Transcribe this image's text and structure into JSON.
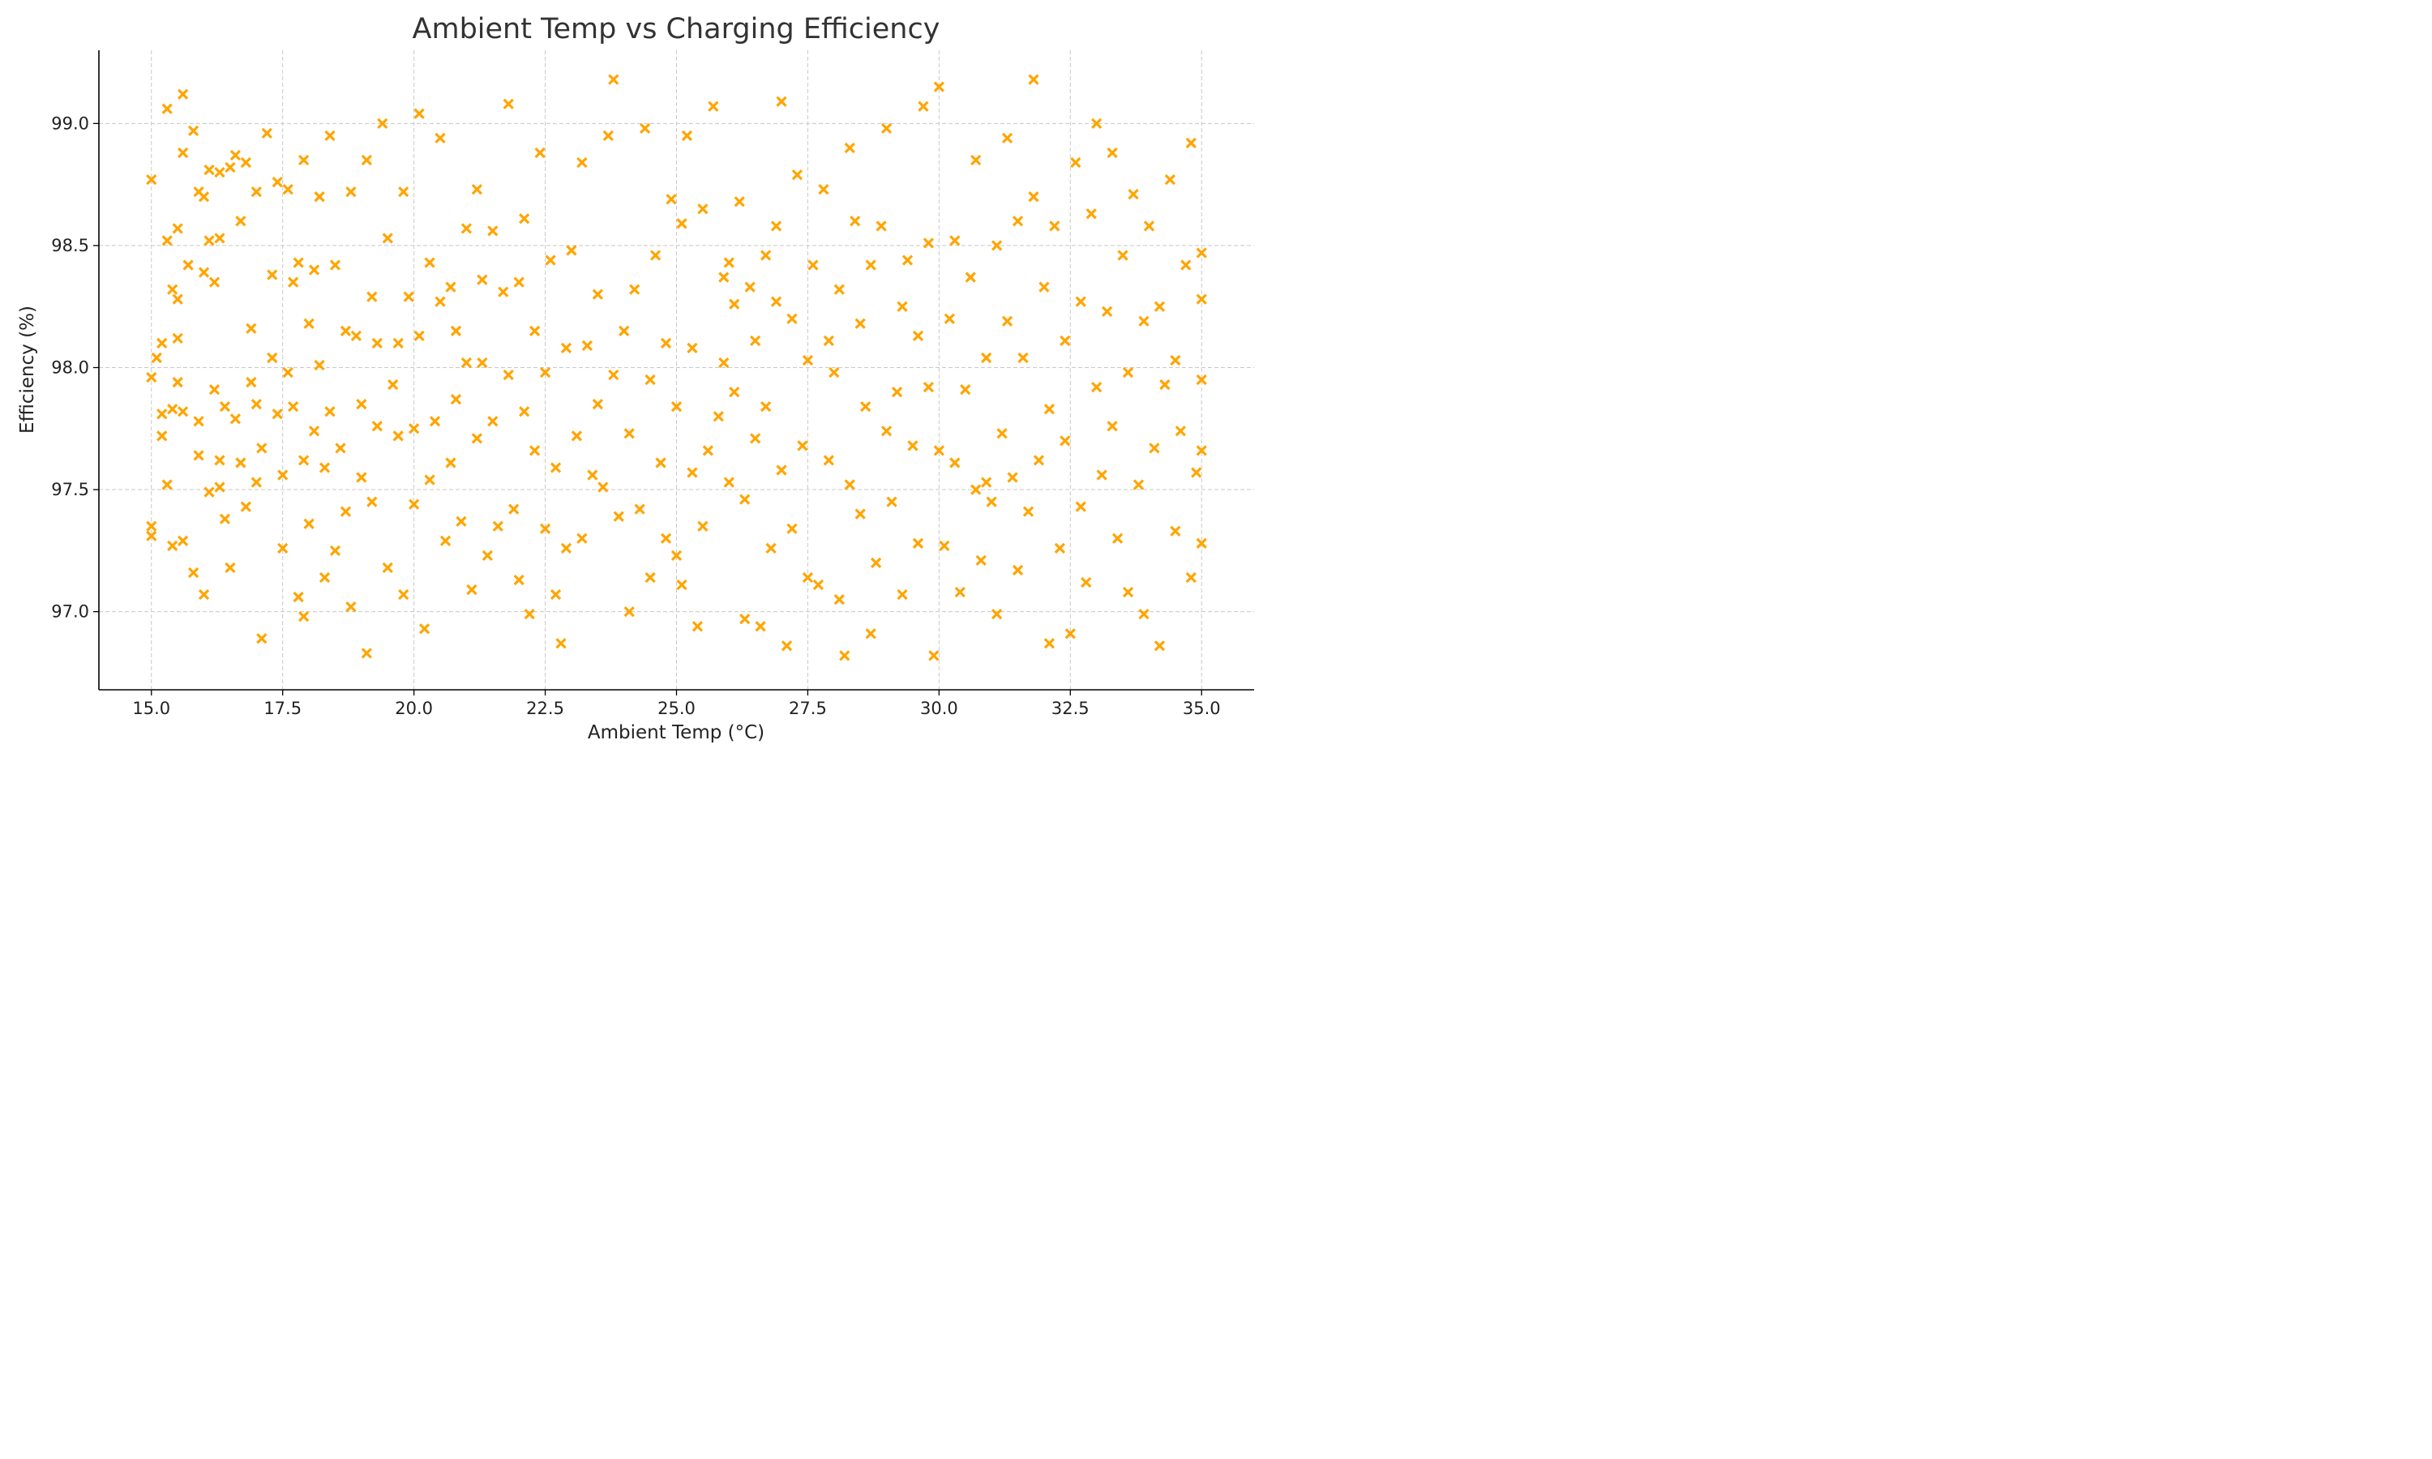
{
  "chart_data": {
    "type": "scatter",
    "title": "Ambient Temp vs Charging Efficiency",
    "xlabel": "Ambient Temp (°C)",
    "ylabel": "Efficiency (%)",
    "xlim": [
      14.0,
      36.0
    ],
    "ylim": [
      96.68,
      99.3
    ],
    "xticks": [
      15.0,
      17.5,
      20.0,
      22.5,
      25.0,
      27.5,
      30.0,
      32.5,
      35.0
    ],
    "xtick_labels": [
      "15.0",
      "17.5",
      "20.0",
      "22.5",
      "25.0",
      "27.5",
      "30.0",
      "32.5",
      "35.0"
    ],
    "yticks": [
      97.0,
      97.5,
      98.0,
      98.5,
      99.0
    ],
    "ytick_labels": [
      "97.0",
      "97.5",
      "98.0",
      "98.5",
      "99.0"
    ],
    "grid": true,
    "marker": "x",
    "color": "#FFA500",
    "points": [
      [
        15.0,
        98.77
      ],
      [
        15.0,
        97.35
      ],
      [
        15.0,
        97.31
      ],
      [
        15.0,
        97.96
      ],
      [
        15.1,
        98.04
      ],
      [
        15.2,
        98.1
      ],
      [
        15.2,
        97.81
      ],
      [
        15.2,
        97.72
      ],
      [
        15.3,
        97.52
      ],
      [
        15.3,
        99.06
      ],
      [
        15.3,
        98.52
      ],
      [
        15.4,
        97.83
      ],
      [
        15.4,
        98.32
      ],
      [
        15.4,
        97.27
      ],
      [
        15.5,
        98.28
      ],
      [
        15.5,
        97.94
      ],
      [
        15.5,
        98.57
      ],
      [
        15.5,
        98.12
      ],
      [
        15.6,
        97.29
      ],
      [
        15.6,
        97.82
      ],
      [
        15.6,
        98.88
      ],
      [
        15.6,
        99.12
      ],
      [
        15.7,
        98.42
      ],
      [
        15.8,
        98.97
      ],
      [
        15.8,
        97.16
      ],
      [
        15.9,
        97.78
      ],
      [
        15.9,
        98.72
      ],
      [
        15.9,
        97.64
      ],
      [
        16.0,
        98.39
      ],
      [
        16.0,
        97.07
      ],
      [
        16.0,
        98.7
      ],
      [
        16.1,
        97.49
      ],
      [
        16.1,
        98.81
      ],
      [
        16.1,
        98.52
      ],
      [
        16.2,
        98.35
      ],
      [
        16.2,
        97.91
      ],
      [
        16.3,
        97.62
      ],
      [
        16.3,
        97.51
      ],
      [
        16.3,
        98.8
      ],
      [
        16.3,
        98.53
      ],
      [
        16.4,
        97.84
      ],
      [
        16.4,
        97.38
      ],
      [
        16.5,
        98.82
      ],
      [
        16.5,
        97.18
      ],
      [
        16.6,
        97.79
      ],
      [
        16.6,
        98.87
      ],
      [
        16.7,
        98.6
      ],
      [
        16.7,
        97.61
      ],
      [
        16.8,
        97.43
      ],
      [
        16.8,
        98.84
      ],
      [
        16.9,
        98.16
      ],
      [
        16.9,
        97.94
      ],
      [
        17.0,
        98.72
      ],
      [
        17.0,
        97.85
      ],
      [
        17.0,
        97.53
      ],
      [
        17.1,
        97.67
      ],
      [
        17.1,
        96.89
      ],
      [
        17.2,
        98.96
      ],
      [
        17.3,
        98.38
      ],
      [
        17.3,
        98.04
      ],
      [
        17.4,
        97.81
      ],
      [
        17.4,
        98.76
      ],
      [
        17.5,
        97.56
      ],
      [
        17.5,
        97.26
      ],
      [
        17.6,
        98.73
      ],
      [
        17.6,
        97.98
      ],
      [
        17.7,
        98.35
      ],
      [
        17.7,
        97.84
      ],
      [
        17.8,
        97.06
      ],
      [
        17.8,
        98.43
      ],
      [
        17.9,
        98.85
      ],
      [
        17.9,
        97.62
      ],
      [
        17.9,
        96.98
      ],
      [
        18.0,
        98.18
      ],
      [
        18.0,
        97.36
      ],
      [
        18.1,
        98.4
      ],
      [
        18.1,
        97.74
      ],
      [
        18.2,
        98.7
      ],
      [
        18.2,
        98.01
      ],
      [
        18.3,
        97.59
      ],
      [
        18.3,
        97.14
      ],
      [
        18.4,
        98.95
      ],
      [
        18.4,
        97.82
      ],
      [
        18.5,
        98.42
      ],
      [
        18.5,
        97.25
      ],
      [
        18.6,
        97.67
      ],
      [
        18.7,
        98.15
      ],
      [
        18.7,
        97.41
      ],
      [
        18.8,
        98.72
      ],
      [
        18.8,
        97.02
      ],
      [
        18.9,
        98.13
      ],
      [
        19.0,
        97.85
      ],
      [
        19.0,
        97.55
      ],
      [
        19.1,
        98.85
      ],
      [
        19.1,
        96.83
      ],
      [
        19.2,
        98.29
      ],
      [
        19.2,
        97.45
      ],
      [
        19.3,
        98.1
      ],
      [
        19.3,
        97.76
      ],
      [
        19.4,
        99.0
      ],
      [
        19.5,
        98.53
      ],
      [
        19.5,
        97.18
      ],
      [
        19.6,
        97.93
      ],
      [
        19.7,
        98.1
      ],
      [
        19.7,
        97.72
      ],
      [
        19.8,
        98.72
      ],
      [
        19.8,
        97.07
      ],
      [
        19.9,
        98.29
      ],
      [
        20.0,
        97.75
      ],
      [
        20.0,
        97.44
      ],
      [
        20.1,
        99.04
      ],
      [
        20.1,
        98.13
      ],
      [
        20.2,
        96.93
      ],
      [
        20.3,
        97.54
      ],
      [
        20.3,
        98.43
      ],
      [
        20.4,
        97.78
      ],
      [
        20.5,
        98.94
      ],
      [
        20.5,
        98.27
      ],
      [
        20.6,
        97.29
      ],
      [
        20.7,
        97.61
      ],
      [
        20.7,
        98.33
      ],
      [
        20.8,
        98.15
      ],
      [
        20.8,
        97.87
      ],
      [
        20.9,
        97.37
      ],
      [
        21.0,
        98.57
      ],
      [
        21.0,
        98.02
      ],
      [
        21.1,
        97.09
      ],
      [
        21.2,
        97.71
      ],
      [
        21.2,
        98.73
      ],
      [
        21.3,
        98.36
      ],
      [
        21.3,
        98.02
      ],
      [
        21.4,
        97.23
      ],
      [
        21.5,
        97.78
      ],
      [
        21.5,
        98.56
      ],
      [
        21.6,
        97.35
      ],
      [
        21.7,
        98.31
      ],
      [
        21.8,
        99.08
      ],
      [
        21.8,
        97.97
      ],
      [
        21.9,
        97.42
      ],
      [
        22.0,
        98.35
      ],
      [
        22.0,
        97.13
      ],
      [
        22.1,
        97.82
      ],
      [
        22.1,
        98.61
      ],
      [
        22.2,
        96.99
      ],
      [
        22.3,
        98.15
      ],
      [
        22.3,
        97.66
      ],
      [
        22.4,
        98.88
      ],
      [
        22.5,
        97.34
      ],
      [
        22.5,
        97.98
      ],
      [
        22.6,
        98.44
      ],
      [
        22.7,
        97.07
      ],
      [
        22.7,
        97.59
      ],
      [
        22.8,
        96.87
      ],
      [
        22.9,
        98.08
      ],
      [
        22.9,
        97.26
      ],
      [
        23.0,
        98.48
      ],
      [
        23.1,
        97.72
      ],
      [
        23.2,
        98.84
      ],
      [
        23.2,
        97.3
      ],
      [
        23.3,
        98.09
      ],
      [
        23.4,
        97.56
      ],
      [
        23.5,
        98.3
      ],
      [
        23.5,
        97.85
      ],
      [
        23.6,
        97.51
      ],
      [
        23.7,
        98.95
      ],
      [
        23.8,
        97.97
      ],
      [
        23.8,
        99.18
      ],
      [
        23.9,
        97.39
      ],
      [
        24.0,
        98.15
      ],
      [
        24.1,
        97.73
      ],
      [
        24.1,
        97.0
      ],
      [
        24.2,
        98.32
      ],
      [
        24.3,
        97.42
      ],
      [
        24.4,
        98.98
      ],
      [
        24.5,
        97.95
      ],
      [
        24.5,
        97.14
      ],
      [
        24.6,
        98.46
      ],
      [
        24.7,
        97.61
      ],
      [
        24.8,
        98.1
      ],
      [
        24.8,
        97.3
      ],
      [
        24.9,
        98.69
      ],
      [
        25.0,
        97.23
      ],
      [
        25.0,
        97.84
      ],
      [
        25.1,
        98.59
      ],
      [
        25.1,
        97.11
      ],
      [
        25.2,
        98.95
      ],
      [
        25.3,
        97.57
      ],
      [
        25.3,
        98.08
      ],
      [
        25.4,
        96.94
      ],
      [
        25.5,
        98.65
      ],
      [
        25.5,
        97.35
      ],
      [
        25.6,
        97.66
      ],
      [
        25.7,
        99.07
      ],
      [
        25.8,
        97.8
      ],
      [
        25.9,
        98.37
      ],
      [
        25.9,
        98.02
      ],
      [
        26.0,
        97.53
      ],
      [
        26.0,
        98.43
      ],
      [
        26.1,
        98.26
      ],
      [
        26.1,
        97.9
      ],
      [
        26.2,
        98.68
      ],
      [
        26.3,
        97.46
      ],
      [
        26.3,
        96.97
      ],
      [
        26.4,
        98.33
      ],
      [
        26.5,
        97.71
      ],
      [
        26.5,
        98.11
      ],
      [
        26.6,
        96.94
      ],
      [
        26.7,
        98.46
      ],
      [
        26.7,
        97.84
      ],
      [
        26.8,
        97.26
      ],
      [
        26.9,
        98.58
      ],
      [
        26.9,
        98.27
      ],
      [
        27.0,
        97.58
      ],
      [
        27.0,
        99.09
      ],
      [
        27.1,
        96.86
      ],
      [
        27.2,
        98.2
      ],
      [
        27.2,
        97.34
      ],
      [
        27.3,
        98.79
      ],
      [
        27.4,
        97.68
      ],
      [
        27.5,
        97.14
      ],
      [
        27.5,
        98.03
      ],
      [
        27.6,
        98.42
      ],
      [
        27.7,
        97.11
      ],
      [
        27.8,
        98.73
      ],
      [
        27.9,
        97.62
      ],
      [
        27.9,
        98.11
      ],
      [
        28.0,
        97.98
      ],
      [
        28.1,
        97.05
      ],
      [
        28.1,
        98.32
      ],
      [
        28.2,
        96.82
      ],
      [
        28.3,
        98.9
      ],
      [
        28.3,
        97.52
      ],
      [
        28.4,
        98.6
      ],
      [
        28.5,
        97.4
      ],
      [
        28.5,
        98.18
      ],
      [
        28.6,
        97.84
      ],
      [
        28.7,
        96.91
      ],
      [
        28.7,
        98.42
      ],
      [
        28.8,
        97.2
      ],
      [
        28.9,
        98.58
      ],
      [
        29.0,
        97.74
      ],
      [
        29.0,
        98.98
      ],
      [
        29.1,
        97.45
      ],
      [
        29.2,
        97.9
      ],
      [
        29.3,
        98.25
      ],
      [
        29.3,
        97.07
      ],
      [
        29.4,
        98.44
      ],
      [
        29.5,
        97.68
      ],
      [
        29.6,
        98.13
      ],
      [
        29.6,
        97.28
      ],
      [
        29.7,
        99.07
      ],
      [
        29.8,
        97.92
      ],
      [
        29.8,
        98.51
      ],
      [
        29.9,
        96.82
      ],
      [
        30.0,
        97.66
      ],
      [
        30.0,
        99.15
      ],
      [
        30.1,
        97.27
      ],
      [
        30.2,
        98.2
      ],
      [
        30.3,
        97.61
      ],
      [
        30.3,
        98.52
      ],
      [
        30.4,
        97.08
      ],
      [
        30.5,
        97.91
      ],
      [
        30.6,
        98.37
      ],
      [
        30.7,
        97.5
      ],
      [
        30.7,
        98.85
      ],
      [
        30.8,
        97.21
      ],
      [
        30.9,
        97.53
      ],
      [
        30.9,
        98.04
      ],
      [
        31.0,
        97.45
      ],
      [
        31.1,
        98.5
      ],
      [
        31.1,
        96.99
      ],
      [
        31.2,
        97.73
      ],
      [
        31.3,
        98.94
      ],
      [
        31.3,
        98.19
      ],
      [
        31.4,
        97.55
      ],
      [
        31.5,
        98.6
      ],
      [
        31.5,
        97.17
      ],
      [
        31.6,
        98.04
      ],
      [
        31.7,
        97.41
      ],
      [
        31.8,
        98.7
      ],
      [
        31.8,
        99.18
      ],
      [
        31.9,
        97.62
      ],
      [
        32.0,
        98.33
      ],
      [
        32.1,
        97.83
      ],
      [
        32.1,
        96.87
      ],
      [
        32.2,
        98.58
      ],
      [
        32.3,
        97.26
      ],
      [
        32.4,
        98.11
      ],
      [
        32.4,
        97.7
      ],
      [
        32.5,
        96.91
      ],
      [
        32.6,
        98.84
      ],
      [
        32.7,
        97.43
      ],
      [
        32.7,
        98.27
      ],
      [
        32.8,
        97.12
      ],
      [
        32.9,
        98.63
      ],
      [
        33.0,
        97.92
      ],
      [
        33.0,
        99.0
      ],
      [
        33.1,
        97.56
      ],
      [
        33.2,
        98.23
      ],
      [
        33.3,
        97.76
      ],
      [
        33.3,
        98.88
      ],
      [
        33.4,
        97.3
      ],
      [
        33.5,
        98.46
      ],
      [
        33.6,
        97.98
      ],
      [
        33.6,
        97.08
      ],
      [
        33.7,
        98.71
      ],
      [
        33.8,
        97.52
      ],
      [
        33.9,
        98.19
      ],
      [
        33.9,
        96.99
      ],
      [
        34.0,
        98.58
      ],
      [
        34.1,
        97.67
      ],
      [
        34.2,
        98.25
      ],
      [
        34.2,
        96.86
      ],
      [
        34.3,
        97.93
      ],
      [
        34.4,
        98.77
      ],
      [
        34.5,
        97.33
      ],
      [
        34.5,
        98.03
      ],
      [
        34.6,
        97.74
      ],
      [
        34.7,
        98.42
      ],
      [
        34.8,
        97.14
      ],
      [
        34.8,
        98.92
      ],
      [
        34.9,
        97.57
      ],
      [
        35.0,
        98.28
      ],
      [
        35.0,
        97.95
      ],
      [
        35.0,
        97.28
      ],
      [
        35.0,
        98.47
      ],
      [
        35.0,
        97.66
      ]
    ]
  }
}
